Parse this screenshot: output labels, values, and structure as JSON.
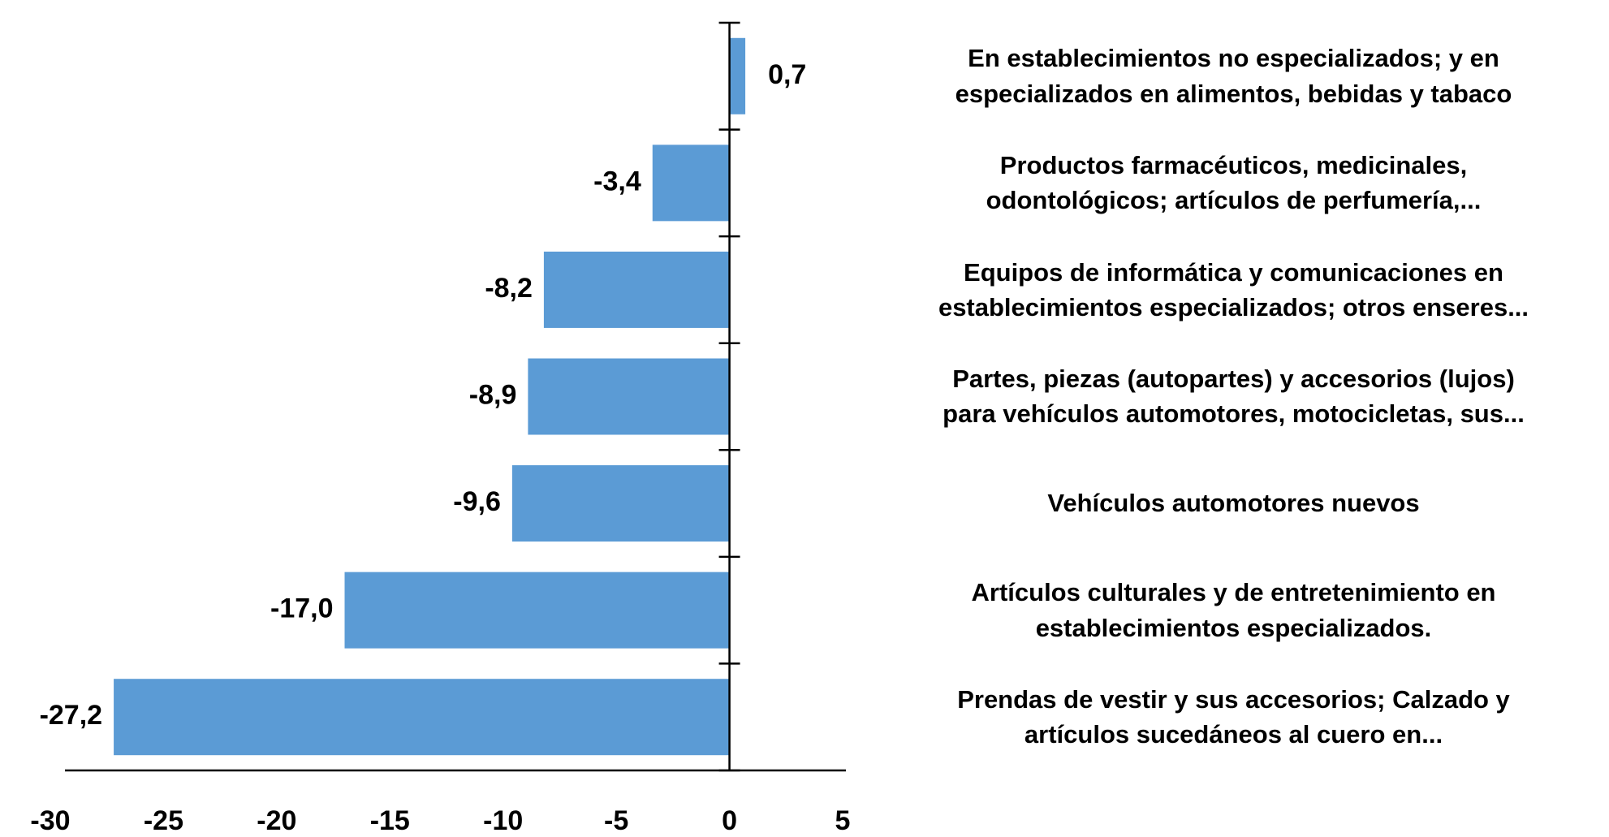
{
  "chart_data": {
    "type": "bar",
    "orientation": "horizontal",
    "categories": [
      "En establecimientos no especializados; y en\nespecializados en alimentos, bebidas y tabaco",
      "Productos farmacéuticos, medicinales,\nodontológicos; artículos de perfumería,...",
      "Equipos de informática y comunicaciones en\nestablecimientos especializados;  otros enseres...",
      "Partes, piezas (autopartes) y accesorios (lujos)\npara vehículos automotores, motocicletas, sus...",
      "Vehículos automotores nuevos",
      "Artículos culturales y de entretenimiento en\nestablecimientos especializados.",
      "Prendas de vestir y sus accesorios; Calzado y\nartículos sucedáneos al cuero en..."
    ],
    "values": [
      0.7,
      -3.4,
      -8.2,
      -8.9,
      -9.6,
      -17.0,
      -27.2
    ],
    "value_labels": [
      "0,7",
      "-3,4",
      "-8,2",
      "-8,9",
      "-9,6",
      "-17,0",
      "-27,2"
    ],
    "color": "#5b9bd5",
    "xlim": [
      -30,
      5
    ],
    "xticks": [
      -30,
      -25,
      -20,
      -15,
      -10,
      -5,
      0,
      5
    ]
  }
}
